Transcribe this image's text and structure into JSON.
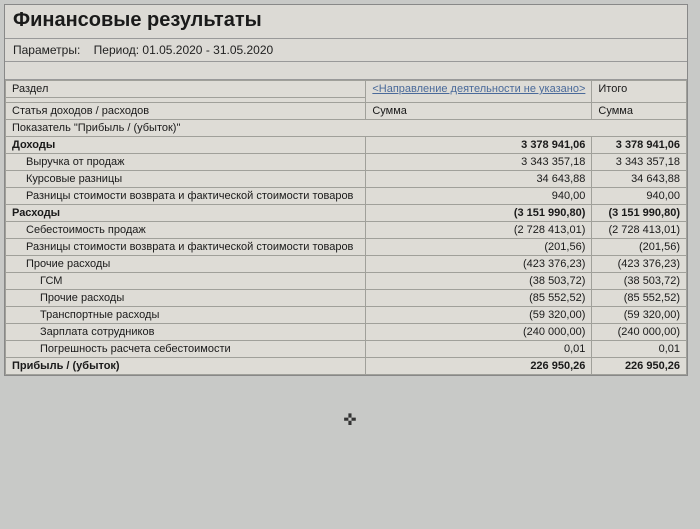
{
  "report": {
    "title": "Финансовые результаты",
    "params_label": "Параметры:",
    "period_label": "Период:",
    "period_value": "01.05.2020 - 31.05.2020",
    "section_label": "Раздел",
    "direction_header": "<Направление деятельности не указано>",
    "total_header": "Итого",
    "article_label": "Статья доходов / расходов",
    "indicator_label": "Показатель \"Прибыль / (убыток)\"",
    "sum_label": "Сумма",
    "cursor_icon": "✜"
  },
  "table": {
    "rows": [
      {
        "label": "Доходы",
        "v1": "3 378 941,06",
        "v2": "3 378 941,06",
        "bold": true,
        "indent": 0
      },
      {
        "label": "Выручка от продаж",
        "v1": "3 343 357,18",
        "v2": "3 343 357,18",
        "bold": false,
        "indent": 1
      },
      {
        "label": "Курсовые разницы",
        "v1": "34 643,88",
        "v2": "34 643,88",
        "bold": false,
        "indent": 1
      },
      {
        "label": "Разницы стоимости возврата и фактической стоимости товаров",
        "v1": "940,00",
        "v2": "940,00",
        "bold": false,
        "indent": 1
      },
      {
        "label": "Расходы",
        "v1": "(3 151 990,80)",
        "v2": "(3 151 990,80)",
        "bold": true,
        "indent": 0
      },
      {
        "label": "Себестоимость продаж",
        "v1": "(2 728 413,01)",
        "v2": "(2 728 413,01)",
        "bold": false,
        "indent": 1
      },
      {
        "label": "Разницы стоимости возврата и фактической стоимости товаров",
        "v1": "(201,56)",
        "v2": "(201,56)",
        "bold": false,
        "indent": 1
      },
      {
        "label": "Прочие расходы",
        "v1": "(423 376,23)",
        "v2": "(423 376,23)",
        "bold": false,
        "indent": 1
      },
      {
        "label": "ГСМ",
        "v1": "(38 503,72)",
        "v2": "(38 503,72)",
        "bold": false,
        "indent": 2
      },
      {
        "label": "Прочие расходы",
        "v1": "(85 552,52)",
        "v2": "(85 552,52)",
        "bold": false,
        "indent": 2
      },
      {
        "label": "Транспортные расходы",
        "v1": "(59 320,00)",
        "v2": "(59 320,00)",
        "bold": false,
        "indent": 2
      },
      {
        "label": "Зарплата сотрудников",
        "v1": "(240 000,00)",
        "v2": "(240 000,00)",
        "bold": false,
        "indent": 2
      },
      {
        "label": "Погрешность расчета себестоимости",
        "v1": "0,01",
        "v2": "0,01",
        "bold": false,
        "indent": 2
      },
      {
        "label": "Прибыль / (убыток)",
        "v1": "226 950,26",
        "v2": "226 950,26",
        "bold": true,
        "indent": 0
      }
    ]
  },
  "style": {
    "background_color": "#c8c9c7",
    "panel_color": "#dcdad5",
    "border_color": "#a0a09a",
    "link_color": "#4a6a9a",
    "title_fontsize": 20,
    "body_fontsize": 11,
    "col_label_width": 490,
    "col_val_width": 100
  }
}
